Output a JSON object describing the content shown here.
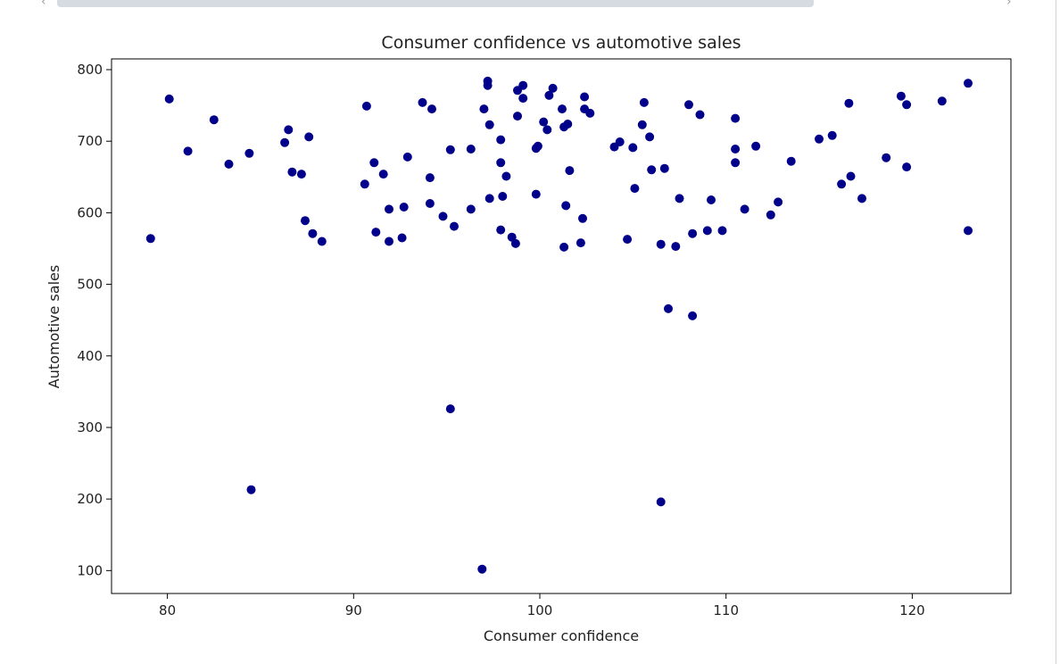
{
  "scrollbar": {
    "left_arrow": "‹",
    "right_arrow": "›"
  },
  "chart_data": {
    "type": "scatter",
    "title": "Consumer confidence vs automotive sales",
    "xlabel": "Consumer confidence",
    "ylabel": "Automotive sales",
    "xlim": [
      77,
      125.3
    ],
    "ylim": [
      68,
      815
    ],
    "xticks": [
      80,
      90,
      100,
      110,
      120
    ],
    "yticks": [
      100,
      200,
      300,
      400,
      500,
      600,
      700,
      800
    ],
    "grid": false,
    "color": "#00008b",
    "points": [
      [
        79.1,
        564
      ],
      [
        80.1,
        759
      ],
      [
        81.1,
        686
      ],
      [
        82.5,
        730
      ],
      [
        83.3,
        668
      ],
      [
        84.4,
        683
      ],
      [
        84.5,
        213
      ],
      [
        86.3,
        698
      ],
      [
        86.5,
        716
      ],
      [
        86.7,
        657
      ],
      [
        87.2,
        654
      ],
      [
        87.4,
        589
      ],
      [
        87.6,
        706
      ],
      [
        87.8,
        571
      ],
      [
        88.3,
        560
      ],
      [
        90.6,
        640
      ],
      [
        90.7,
        749
      ],
      [
        91.1,
        670
      ],
      [
        91.2,
        573
      ],
      [
        91.6,
        654
      ],
      [
        91.9,
        605
      ],
      [
        91.9,
        560
      ],
      [
        92.6,
        565
      ],
      [
        92.7,
        608
      ],
      [
        92.9,
        678
      ],
      [
        93.7,
        754
      ],
      [
        94.1,
        613
      ],
      [
        94.1,
        649
      ],
      [
        94.2,
        745
      ],
      [
        94.8,
        595
      ],
      [
        95.2,
        688
      ],
      [
        95.2,
        326
      ],
      [
        95.4,
        581
      ],
      [
        96.3,
        605
      ],
      [
        96.3,
        689
      ],
      [
        96.9,
        102
      ],
      [
        97.0,
        745
      ],
      [
        97.2,
        778
      ],
      [
        97.2,
        784
      ],
      [
        97.3,
        620
      ],
      [
        97.3,
        723
      ],
      [
        97.9,
        576
      ],
      [
        97.9,
        670
      ],
      [
        97.9,
        702
      ],
      [
        98.0,
        623
      ],
      [
        98.2,
        651
      ],
      [
        98.5,
        566
      ],
      [
        98.7,
        557
      ],
      [
        98.8,
        735
      ],
      [
        98.8,
        771
      ],
      [
        99.1,
        760
      ],
      [
        99.1,
        778
      ],
      [
        99.8,
        626
      ],
      [
        99.8,
        690
      ],
      [
        99.9,
        693
      ],
      [
        100.2,
        727
      ],
      [
        100.4,
        716
      ],
      [
        100.5,
        764
      ],
      [
        100.7,
        774
      ],
      [
        101.2,
        745
      ],
      [
        101.3,
        720
      ],
      [
        101.3,
        552
      ],
      [
        101.4,
        610
      ],
      [
        101.5,
        724
      ],
      [
        101.6,
        659
      ],
      [
        102.2,
        558
      ],
      [
        102.3,
        592
      ],
      [
        102.4,
        745
      ],
      [
        102.4,
        762
      ],
      [
        102.7,
        739
      ],
      [
        104.0,
        692
      ],
      [
        104.3,
        699
      ],
      [
        104.7,
        563
      ],
      [
        105.0,
        691
      ],
      [
        105.1,
        634
      ],
      [
        105.5,
        723
      ],
      [
        105.6,
        754
      ],
      [
        105.9,
        706
      ],
      [
        106.0,
        660
      ],
      [
        106.5,
        556
      ],
      [
        106.5,
        196
      ],
      [
        106.7,
        662
      ],
      [
        106.9,
        466
      ],
      [
        107.3,
        553
      ],
      [
        107.5,
        620
      ],
      [
        108.0,
        751
      ],
      [
        108.2,
        571
      ],
      [
        108.2,
        456
      ],
      [
        108.6,
        737
      ],
      [
        109.0,
        575
      ],
      [
        109.2,
        618
      ],
      [
        109.8,
        575
      ],
      [
        110.5,
        732
      ],
      [
        110.5,
        689
      ],
      [
        110.5,
        670
      ],
      [
        111.0,
        605
      ],
      [
        111.6,
        693
      ],
      [
        112.4,
        597
      ],
      [
        112.8,
        615
      ],
      [
        113.5,
        672
      ],
      [
        115.0,
        703
      ],
      [
        115.7,
        708
      ],
      [
        116.2,
        640
      ],
      [
        116.6,
        753
      ],
      [
        116.7,
        651
      ],
      [
        117.3,
        620
      ],
      [
        118.6,
        677
      ],
      [
        119.4,
        763
      ],
      [
        119.7,
        751
      ],
      [
        119.7,
        664
      ],
      [
        121.6,
        756
      ],
      [
        123.0,
        781
      ],
      [
        123.0,
        575
      ]
    ]
  }
}
